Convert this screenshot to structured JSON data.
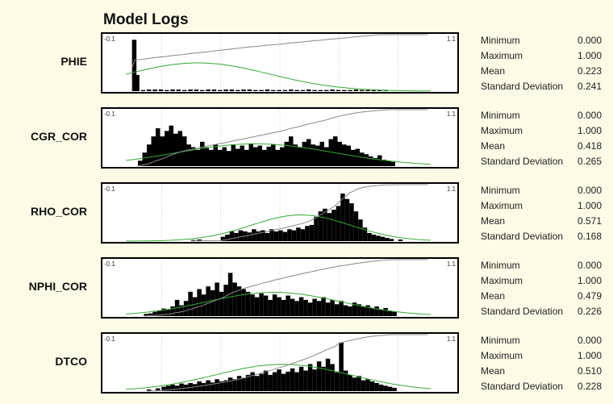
{
  "title": "Model Logs",
  "stat_labels": {
    "min": "Minimum",
    "max": "Maximum",
    "mean": "Mean",
    "std": "Standard Deviation"
  },
  "axis_labels": {
    "left": "-0.1",
    "right": "1.1"
  },
  "colors": {
    "panel": "#fbfbe6",
    "bars": "#000000",
    "normal_curve": "#33aa33",
    "cumulative": "#888888",
    "grid": "#c8c8c8"
  },
  "chart_data": [
    {
      "type": "bar",
      "name": "PHIE",
      "xlim": [
        -0.1,
        1.1
      ],
      "stats": {
        "min": "0.000",
        "max": "1.000",
        "mean": "0.223",
        "std": "0.241"
      },
      "bins": [
        [
          0.0,
          0.95
        ],
        [
          0.01,
          0.3
        ],
        [
          0.03,
          0.02
        ],
        [
          0.05,
          0.03
        ],
        [
          0.07,
          0.03
        ],
        [
          0.09,
          0.03
        ],
        [
          0.11,
          0.02
        ],
        [
          0.13,
          0.03
        ],
        [
          0.15,
          0.03
        ],
        [
          0.17,
          0.02
        ],
        [
          0.19,
          0.03
        ],
        [
          0.21,
          0.03
        ],
        [
          0.23,
          0.02
        ],
        [
          0.25,
          0.03
        ],
        [
          0.27,
          0.03
        ],
        [
          0.29,
          0.02
        ],
        [
          0.31,
          0.03
        ],
        [
          0.33,
          0.03
        ],
        [
          0.35,
          0.02
        ],
        [
          0.37,
          0.03
        ],
        [
          0.39,
          0.03
        ],
        [
          0.41,
          0.02
        ],
        [
          0.43,
          0.02
        ],
        [
          0.45,
          0.03
        ],
        [
          0.47,
          0.02
        ],
        [
          0.49,
          0.02
        ],
        [
          0.51,
          0.02
        ],
        [
          0.53,
          0.03
        ],
        [
          0.55,
          0.02
        ],
        [
          0.57,
          0.02
        ],
        [
          0.59,
          0.03
        ],
        [
          0.61,
          0.02
        ],
        [
          0.63,
          0.02
        ],
        [
          0.65,
          0.02
        ],
        [
          0.67,
          0.03
        ],
        [
          0.69,
          0.02
        ],
        [
          0.71,
          0.02
        ],
        [
          0.73,
          0.02
        ],
        [
          0.75,
          0.03
        ],
        [
          0.77,
          0.02
        ],
        [
          0.79,
          0.02
        ],
        [
          0.81,
          0.02
        ],
        [
          0.83,
          0.02
        ],
        [
          0.85,
          0.01
        ]
      ]
    },
    {
      "type": "bar",
      "name": "CGR_COR",
      "xlim": [
        -0.1,
        1.1
      ],
      "stats": {
        "min": "0.000",
        "max": "1.000",
        "mean": "0.418",
        "std": "0.265"
      },
      "bins": [
        [
          0.02,
          0.1
        ],
        [
          0.035,
          0.25
        ],
        [
          0.05,
          0.4
        ],
        [
          0.065,
          0.55
        ],
        [
          0.08,
          0.7
        ],
        [
          0.095,
          0.55
        ],
        [
          0.11,
          0.65
        ],
        [
          0.125,
          0.75
        ],
        [
          0.14,
          0.6
        ],
        [
          0.155,
          0.65
        ],
        [
          0.17,
          0.55
        ],
        [
          0.185,
          0.4
        ],
        [
          0.2,
          0.35
        ],
        [
          0.215,
          0.3
        ],
        [
          0.23,
          0.45
        ],
        [
          0.245,
          0.35
        ],
        [
          0.26,
          0.3
        ],
        [
          0.275,
          0.4
        ],
        [
          0.29,
          0.3
        ],
        [
          0.305,
          0.35
        ],
        [
          0.32,
          0.28
        ],
        [
          0.335,
          0.4
        ],
        [
          0.35,
          0.32
        ],
        [
          0.365,
          0.38
        ],
        [
          0.38,
          0.3
        ],
        [
          0.395,
          0.42
        ],
        [
          0.41,
          0.35
        ],
        [
          0.425,
          0.38
        ],
        [
          0.44,
          0.3
        ],
        [
          0.455,
          0.36
        ],
        [
          0.47,
          0.4
        ],
        [
          0.485,
          0.3
        ],
        [
          0.5,
          0.35
        ],
        [
          0.515,
          0.45
        ],
        [
          0.53,
          0.55
        ],
        [
          0.545,
          0.4
        ],
        [
          0.56,
          0.35
        ],
        [
          0.575,
          0.45
        ],
        [
          0.59,
          0.5
        ],
        [
          0.605,
          0.4
        ],
        [
          0.62,
          0.38
        ],
        [
          0.635,
          0.45
        ],
        [
          0.65,
          0.35
        ],
        [
          0.665,
          0.5
        ],
        [
          0.68,
          0.55
        ],
        [
          0.695,
          0.45
        ],
        [
          0.71,
          0.4
        ],
        [
          0.725,
          0.38
        ],
        [
          0.74,
          0.3
        ],
        [
          0.755,
          0.32
        ],
        [
          0.77,
          0.25
        ],
        [
          0.785,
          0.22
        ],
        [
          0.8,
          0.18
        ],
        [
          0.815,
          0.15
        ],
        [
          0.83,
          0.2
        ],
        [
          0.845,
          0.12
        ],
        [
          0.86,
          0.1
        ],
        [
          0.875,
          0.08
        ]
      ]
    },
    {
      "type": "bar",
      "name": "RHO_COR",
      "xlim": [
        -0.1,
        1.1
      ],
      "stats": {
        "min": "0.000",
        "max": "1.000",
        "mean": "0.571",
        "std": "0.168"
      },
      "bins": [
        [
          0.2,
          0.02
        ],
        [
          0.22,
          0.03
        ],
        [
          0.3,
          0.08
        ],
        [
          0.315,
          0.12
        ],
        [
          0.33,
          0.18
        ],
        [
          0.345,
          0.15
        ],
        [
          0.36,
          0.2
        ],
        [
          0.375,
          0.18
        ],
        [
          0.39,
          0.16
        ],
        [
          0.405,
          0.22
        ],
        [
          0.42,
          0.18
        ],
        [
          0.435,
          0.2
        ],
        [
          0.45,
          0.15
        ],
        [
          0.465,
          0.22
        ],
        [
          0.48,
          0.18
        ],
        [
          0.495,
          0.2
        ],
        [
          0.51,
          0.17
        ],
        [
          0.525,
          0.22
        ],
        [
          0.54,
          0.2
        ],
        [
          0.555,
          0.25
        ],
        [
          0.57,
          0.22
        ],
        [
          0.585,
          0.28
        ],
        [
          0.6,
          0.3
        ],
        [
          0.615,
          0.45
        ],
        [
          0.63,
          0.55
        ],
        [
          0.645,
          0.6
        ],
        [
          0.66,
          0.52
        ],
        [
          0.675,
          0.58
        ],
        [
          0.69,
          0.65
        ],
        [
          0.705,
          0.88
        ],
        [
          0.72,
          0.78
        ],
        [
          0.735,
          0.7
        ],
        [
          0.75,
          0.55
        ],
        [
          0.765,
          0.4
        ],
        [
          0.78,
          0.25
        ],
        [
          0.795,
          0.15
        ],
        [
          0.81,
          0.12
        ],
        [
          0.825,
          0.1
        ],
        [
          0.84,
          0.08
        ],
        [
          0.855,
          0.06
        ],
        [
          0.87,
          0.04
        ],
        [
          0.9,
          0.03
        ]
      ]
    },
    {
      "type": "bar",
      "name": "NPHI_COR",
      "xlim": [
        -0.1,
        1.1
      ],
      "stats": {
        "min": "0.000",
        "max": "1.000",
        "mean": "0.479",
        "std": "0.226"
      },
      "bins": [
        [
          0.04,
          0.04
        ],
        [
          0.055,
          0.05
        ],
        [
          0.07,
          0.08
        ],
        [
          0.085,
          0.1
        ],
        [
          0.1,
          0.14
        ],
        [
          0.115,
          0.12
        ],
        [
          0.13,
          0.18
        ],
        [
          0.145,
          0.3
        ],
        [
          0.16,
          0.2
        ],
        [
          0.175,
          0.28
        ],
        [
          0.19,
          0.45
        ],
        [
          0.205,
          0.35
        ],
        [
          0.22,
          0.5
        ],
        [
          0.235,
          0.4
        ],
        [
          0.25,
          0.55
        ],
        [
          0.265,
          0.48
        ],
        [
          0.28,
          0.62
        ],
        [
          0.295,
          0.45
        ],
        [
          0.31,
          0.58
        ],
        [
          0.325,
          0.8
        ],
        [
          0.34,
          0.62
        ],
        [
          0.355,
          0.55
        ],
        [
          0.37,
          0.5
        ],
        [
          0.385,
          0.45
        ],
        [
          0.4,
          0.4
        ],
        [
          0.415,
          0.35
        ],
        [
          0.43,
          0.42
        ],
        [
          0.445,
          0.38
        ],
        [
          0.46,
          0.3
        ],
        [
          0.475,
          0.4
        ],
        [
          0.49,
          0.35
        ],
        [
          0.505,
          0.3
        ],
        [
          0.52,
          0.38
        ],
        [
          0.535,
          0.32
        ],
        [
          0.55,
          0.28
        ],
        [
          0.565,
          0.35
        ],
        [
          0.58,
          0.3
        ],
        [
          0.595,
          0.25
        ],
        [
          0.61,
          0.32
        ],
        [
          0.625,
          0.28
        ],
        [
          0.64,
          0.35
        ],
        [
          0.655,
          0.25
        ],
        [
          0.67,
          0.3
        ],
        [
          0.685,
          0.22
        ],
        [
          0.7,
          0.28
        ],
        [
          0.715,
          0.2
        ],
        [
          0.73,
          0.18
        ],
        [
          0.745,
          0.25
        ],
        [
          0.76,
          0.22
        ],
        [
          0.775,
          0.18
        ],
        [
          0.79,
          0.2
        ],
        [
          0.805,
          0.15
        ],
        [
          0.82,
          0.18
        ],
        [
          0.835,
          0.12
        ],
        [
          0.85,
          0.15
        ],
        [
          0.865,
          0.1
        ],
        [
          0.88,
          0.08
        ]
      ]
    },
    {
      "type": "bar",
      "name": "DTCO",
      "xlim": [
        -0.1,
        1.1
      ],
      "stats": {
        "min": "0.000",
        "max": "1.000",
        "mean": "0.510",
        "std": "0.228"
      },
      "bins": [
        [
          0.05,
          0.03
        ],
        [
          0.08,
          0.05
        ],
        [
          0.1,
          0.08
        ],
        [
          0.115,
          0.1
        ],
        [
          0.13,
          0.12
        ],
        [
          0.145,
          0.1
        ],
        [
          0.16,
          0.14
        ],
        [
          0.175,
          0.12
        ],
        [
          0.19,
          0.15
        ],
        [
          0.205,
          0.13
        ],
        [
          0.22,
          0.18
        ],
        [
          0.235,
          0.15
        ],
        [
          0.25,
          0.2
        ],
        [
          0.265,
          0.16
        ],
        [
          0.28,
          0.22
        ],
        [
          0.295,
          0.18
        ],
        [
          0.31,
          0.2
        ],
        [
          0.325,
          0.25
        ],
        [
          0.34,
          0.22
        ],
        [
          0.355,
          0.28
        ],
        [
          0.37,
          0.24
        ],
        [
          0.385,
          0.3
        ],
        [
          0.4,
          0.35
        ],
        [
          0.415,
          0.28
        ],
        [
          0.43,
          0.32
        ],
        [
          0.445,
          0.38
        ],
        [
          0.46,
          0.3
        ],
        [
          0.475,
          0.35
        ],
        [
          0.49,
          0.4
        ],
        [
          0.505,
          0.32
        ],
        [
          0.52,
          0.36
        ],
        [
          0.535,
          0.42
        ],
        [
          0.55,
          0.35
        ],
        [
          0.565,
          0.45
        ],
        [
          0.58,
          0.38
        ],
        [
          0.595,
          0.5
        ],
        [
          0.61,
          0.4
        ],
        [
          0.625,
          0.55
        ],
        [
          0.64,
          0.45
        ],
        [
          0.655,
          0.6
        ],
        [
          0.67,
          0.5
        ],
        [
          0.685,
          0.35
        ],
        [
          0.7,
          0.9
        ],
        [
          0.715,
          0.38
        ],
        [
          0.73,
          0.3
        ],
        [
          0.745,
          0.25
        ],
        [
          0.76,
          0.28
        ],
        [
          0.775,
          0.2
        ],
        [
          0.79,
          0.22
        ],
        [
          0.805,
          0.18
        ],
        [
          0.82,
          0.15
        ],
        [
          0.835,
          0.12
        ],
        [
          0.85,
          0.1
        ],
        [
          0.865,
          0.08
        ],
        [
          0.88,
          0.06
        ]
      ]
    }
  ]
}
